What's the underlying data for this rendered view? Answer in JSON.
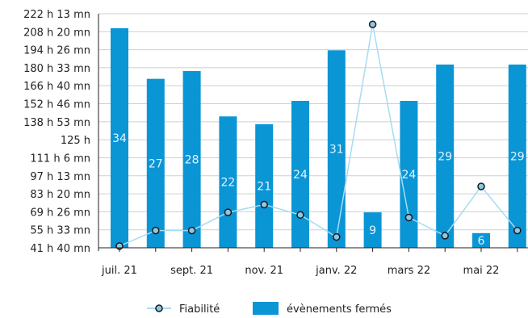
{
  "chart_data": {
    "type": "bar",
    "x_tick_labels": [
      "juil. 21",
      "sept. 21",
      "nov. 21",
      "janv. 22",
      "mars 22",
      "mai 22"
    ],
    "y_tick_labels": [
      "41 h 40 mn",
      "55 h 33 mn",
      "69 h 26 mn",
      "83 h 20 mn",
      "97 h 13 mn",
      "111 h 6 mn",
      "125 h",
      "138 h 53 mn",
      "152 h 46 mn",
      "166 h 40 mn",
      "180 h 33 mn",
      "194 h 26 mn",
      "208 h 20 mn",
      "222 h 13 mn"
    ],
    "ylim_hours": [
      41.667,
      222.222
    ],
    "series": [
      {
        "name": "évènements fermés",
        "kind": "bar",
        "color": "#0a95d5",
        "values_hours": [
          211,
          172,
          178,
          143,
          137,
          155,
          194,
          69,
          155,
          183,
          53,
          183
        ],
        "labels": [
          "34",
          "27",
          "28",
          "22",
          "21",
          "24",
          "31",
          "9",
          "24",
          "29",
          "6",
          "29"
        ]
      },
      {
        "name": "Fiabilité",
        "kind": "line",
        "color": "#a6dcf2",
        "marker_color": "#8cc8e4",
        "values_hours": [
          43,
          55,
          55,
          69,
          75,
          67,
          50,
          214,
          65,
          51,
          89,
          55
        ]
      }
    ],
    "grid": true,
    "legend_position": "bottom"
  }
}
